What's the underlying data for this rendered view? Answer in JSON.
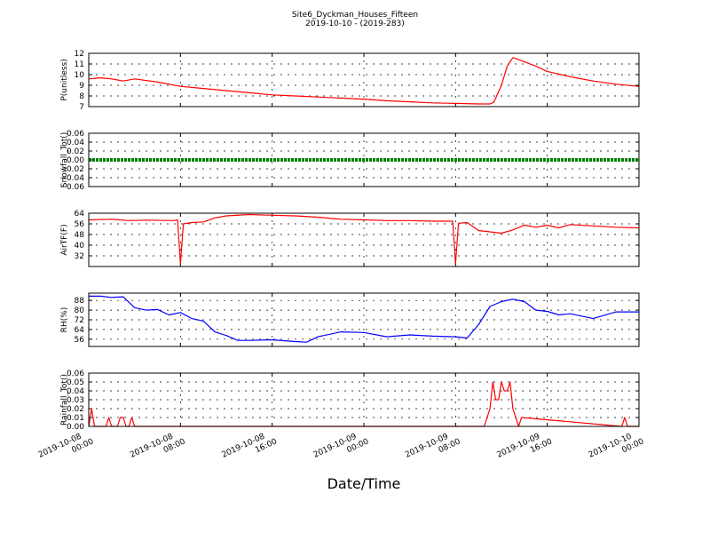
{
  "chart_data": {
    "type": "line",
    "title": "Site6_Dyckman_Houses_Fifteen",
    "subtitle": "2019-10-10 - (2019-283)",
    "xlabel": "Date/Time",
    "x_ticks": [
      "2019-10-08 00:00",
      "2019-10-08 08:00",
      "2019-10-08 16:00",
      "2019-10-09 00:00",
      "2019-10-09 08:00",
      "2019-10-09 16:00",
      "2019-10-10 00:00"
    ],
    "x_range": [
      "2019-10-08 00:00",
      "2019-10-10 00:00"
    ],
    "grid": true,
    "panels": [
      {
        "ylabel": "P(unitless)",
        "ylim": [
          7,
          12
        ],
        "yticks": [
          "7",
          "8",
          "9",
          "10",
          "11",
          "12"
        ],
        "series": [
          {
            "color": "#ff0000",
            "x": [
              "2019-10-08 00:00",
              "2019-10-08 01:00",
              "2019-10-08 02:00",
              "2019-10-08 03:00",
              "2019-10-08 04:00",
              "2019-10-08 06:00",
              "2019-10-08 08:00",
              "2019-10-08 10:00",
              "2019-10-08 12:00",
              "2019-10-08 14:00",
              "2019-10-08 16:00",
              "2019-10-08 18:00",
              "2019-10-08 20:00",
              "2019-10-08 22:00",
              "2019-10-09 00:00",
              "2019-10-09 02:00",
              "2019-10-09 04:00",
              "2019-10-09 06:00",
              "2019-10-09 08:00",
              "2019-10-09 10:00",
              "2019-10-09 11:00",
              "2019-10-09 11:20",
              "2019-10-09 12:00",
              "2019-10-09 12:30",
              "2019-10-09 13:00",
              "2019-10-09 14:00",
              "2019-10-09 15:00",
              "2019-10-09 16:00",
              "2019-10-09 18:00",
              "2019-10-09 20:00",
              "2019-10-09 22:00",
              "2019-10-10 00:00"
            ],
            "y": [
              9.6,
              9.7,
              9.6,
              9.4,
              9.6,
              9.3,
              8.9,
              8.7,
              8.5,
              8.3,
              8.1,
              8.0,
              7.9,
              7.8,
              7.7,
              7.55,
              7.45,
              7.35,
              7.3,
              7.25,
              7.25,
              7.4,
              9.0,
              10.8,
              11.6,
              11.2,
              10.8,
              10.3,
              9.8,
              9.4,
              9.1,
              8.9
            ]
          }
        ]
      },
      {
        "ylabel": "Snowfall_Tot()",
        "ylim": [
          -0.06,
          0.06
        ],
        "yticks": [
          "−0.06",
          "−0.04",
          "−0.02",
          "0.00",
          "0.02",
          "0.04",
          "0.06"
        ],
        "series": [
          {
            "color": "#008000",
            "style": "dots",
            "x": [
              "2019-10-08 00:00",
              "2019-10-10 00:00"
            ],
            "y": [
              0.0,
              0.0
            ]
          }
        ]
      },
      {
        "ylabel": "AirTF(F)",
        "ylim": [
          24,
          64
        ],
        "yticks": [
          "32",
          "40",
          "48",
          "56",
          "64"
        ],
        "series": [
          {
            "color": "#ff0000",
            "x": [
              "2019-10-08 00:00",
              "2019-10-08 02:00",
              "2019-10-08 03:30",
              "2019-10-08 05:00",
              "2019-10-08 07:30",
              "2019-10-08 07:45",
              "2019-10-08 08:00",
              "2019-10-08 08:15",
              "2019-10-08 09:00",
              "2019-10-08 10:00",
              "2019-10-08 11:00",
              "2019-10-08 12:00",
              "2019-10-08 14:00",
              "2019-10-08 16:00",
              "2019-10-08 18:00",
              "2019-10-08 20:00",
              "2019-10-08 22:00",
              "2019-10-09 00:00",
              "2019-10-09 02:00",
              "2019-10-09 04:00",
              "2019-10-09 06:00",
              "2019-10-09 07:45",
              "2019-10-09 08:00",
              "2019-10-09 08:15",
              "2019-10-09 09:00",
              "2019-10-09 10:00",
              "2019-10-09 12:00",
              "2019-10-09 13:00",
              "2019-10-09 14:00",
              "2019-10-09 15:00",
              "2019-10-09 16:00",
              "2019-10-09 17:00",
              "2019-10-09 18:00",
              "2019-10-09 20:00",
              "2019-10-09 22:00",
              "2019-10-10 00:00"
            ],
            "y": [
              59,
              59.5,
              58.5,
              58.8,
              58.5,
              59,
              26,
              56,
              57,
              57.5,
              60.5,
              62,
              63,
              62.5,
              62,
              61,
              59.5,
              59,
              58.5,
              58.5,
              58,
              58,
              26,
              56.5,
              57,
              51,
              49,
              51.5,
              55,
              53.5,
              55,
              53,
              55.5,
              54.5,
              53.5,
              53
            ]
          }
        ]
      },
      {
        "ylabel": "RH(%)",
        "ylim": [
          50,
          94
        ],
        "yticks": [
          "56",
          "64",
          "72",
          "80",
          "88"
        ],
        "series": [
          {
            "color": "#0000ff",
            "x": [
              "2019-10-08 00:00",
              "2019-10-08 01:00",
              "2019-10-08 02:00",
              "2019-10-08 03:00",
              "2019-10-08 04:00",
              "2019-10-08 05:00",
              "2019-10-08 06:00",
              "2019-10-08 07:00",
              "2019-10-08 08:00",
              "2019-10-08 09:00",
              "2019-10-08 10:00",
              "2019-10-08 11:00",
              "2019-10-08 12:00",
              "2019-10-08 13:00",
              "2019-10-08 14:00",
              "2019-10-08 16:00",
              "2019-10-08 18:00",
              "2019-10-08 19:00",
              "2019-10-08 20:00",
              "2019-10-08 22:00",
              "2019-10-09 00:00",
              "2019-10-09 02:00",
              "2019-10-09 04:00",
              "2019-10-09 06:00",
              "2019-10-09 08:00",
              "2019-10-09 09:00",
              "2019-10-09 10:00",
              "2019-10-09 11:00",
              "2019-10-09 12:00",
              "2019-10-09 13:00",
              "2019-10-09 14:00",
              "2019-10-09 15:00",
              "2019-10-09 16:00",
              "2019-10-09 17:00",
              "2019-10-09 18:00",
              "2019-10-09 20:00",
              "2019-10-09 22:00",
              "2019-10-10 00:00"
            ],
            "y": [
              91.5,
              91.5,
              90.5,
              91,
              82,
              80,
              80.5,
              76,
              78,
              73,
              71,
              62,
              59,
              55,
              55,
              55.5,
              54,
              53.5,
              58,
              62,
              61.5,
              58,
              59.5,
              58.5,
              58,
              57,
              68,
              83,
              87,
              89,
              87,
              80,
              79,
              76,
              77,
              73,
              78.5,
              78.5
            ]
          }
        ]
      },
      {
        "ylabel": "Rainfall_Tot()",
        "ylim": [
          0,
          0.06
        ],
        "yticks": [
          "0.00",
          "0.01",
          "0.02",
          "0.03",
          "0.04",
          "0.05",
          "0.06"
        ],
        "series": [
          {
            "color": "#ff0000",
            "x": [
              "2019-10-08 00:00",
              "2019-10-08 00:15",
              "2019-10-08 00:30",
              "2019-10-08 00:45",
              "2019-10-08 01:30",
              "2019-10-08 01:45",
              "2019-10-08 02:00",
              "2019-10-08 02:30",
              "2019-10-08 02:45",
              "2019-10-08 03:00",
              "2019-10-08 03:15",
              "2019-10-08 03:30",
              "2019-10-08 03:45",
              "2019-10-08 04:00",
              "2019-10-09 10:30",
              "2019-10-09 11:00",
              "2019-10-09 11:15",
              "2019-10-09 11:30",
              "2019-10-09 11:45",
              "2019-10-09 12:00",
              "2019-10-09 12:15",
              "2019-10-09 12:30",
              "2019-10-09 12:45",
              "2019-10-09 13:00",
              "2019-10-09 13:15",
              "2019-10-09 13:30",
              "2019-10-09 13:45",
              "2019-10-09 22:30",
              "2019-10-09 22:45",
              "2019-10-09 23:00",
              "2019-10-10 00:00"
            ],
            "y": [
              0,
              0.02,
              0,
              0,
              0,
              0.01,
              0,
              0,
              0.01,
              0.01,
              0,
              0,
              0.01,
              0,
              0,
              0.02,
              0.05,
              0.03,
              0.03,
              0.05,
              0.04,
              0.04,
              0.05,
              0.02,
              0.01,
              0,
              0.01,
              0,
              0.01,
              0,
              0
            ]
          }
        ]
      }
    ]
  }
}
